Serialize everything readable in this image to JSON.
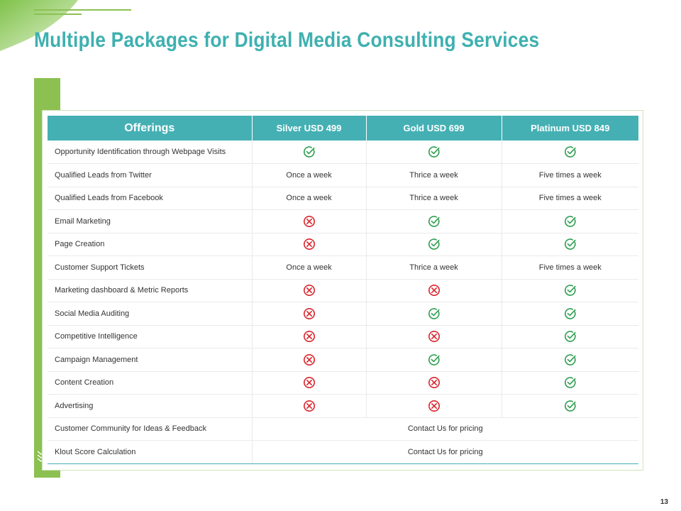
{
  "title": "Multiple Packages for Digital Media Consulting Services",
  "page_number": "13",
  "colors": {
    "header_bg": "#45b0b4",
    "accent_green": "#8cc152",
    "check": "#2e9e4f",
    "cross": "#d9252d",
    "title": "#3fb0b0"
  },
  "table": {
    "headers": [
      "Offerings",
      "Silver USD 499",
      "Gold USD 699",
      "Platinum USD 849"
    ],
    "rows": [
      {
        "feature": "Opportunity Identification through Webpage Visits",
        "cells": [
          {
            "type": "icon",
            "value": "check"
          },
          {
            "type": "icon",
            "value": "check"
          },
          {
            "type": "icon",
            "value": "check"
          }
        ]
      },
      {
        "feature": "Qualified Leads from Twitter",
        "cells": [
          {
            "type": "text",
            "value": "Once a week"
          },
          {
            "type": "text",
            "value": "Thrice a week"
          },
          {
            "type": "text",
            "value": "Five times a week"
          }
        ]
      },
      {
        "feature": "Qualified Leads from Facebook",
        "cells": [
          {
            "type": "text",
            "value": "Once a week"
          },
          {
            "type": "text",
            "value": "Thrice a week"
          },
          {
            "type": "text",
            "value": "Five times a week"
          }
        ]
      },
      {
        "feature": "Email Marketing",
        "cells": [
          {
            "type": "icon",
            "value": "cross"
          },
          {
            "type": "icon",
            "value": "check"
          },
          {
            "type": "icon",
            "value": "check"
          }
        ]
      },
      {
        "feature": "Page Creation",
        "cells": [
          {
            "type": "icon",
            "value": "cross"
          },
          {
            "type": "icon",
            "value": "check"
          },
          {
            "type": "icon",
            "value": "check"
          }
        ]
      },
      {
        "feature": "Customer Support Tickets",
        "cells": [
          {
            "type": "text",
            "value": "Once a week"
          },
          {
            "type": "text",
            "value": "Thrice a week"
          },
          {
            "type": "text",
            "value": "Five times a week"
          }
        ]
      },
      {
        "feature": "Marketing dashboard & Metric Reports",
        "cells": [
          {
            "type": "icon",
            "value": "cross"
          },
          {
            "type": "icon",
            "value": "cross"
          },
          {
            "type": "icon",
            "value": "check"
          }
        ]
      },
      {
        "feature": "Social Media Auditing",
        "cells": [
          {
            "type": "icon",
            "value": "cross"
          },
          {
            "type": "icon",
            "value": "check"
          },
          {
            "type": "icon",
            "value": "check"
          }
        ]
      },
      {
        "feature": "Competitive Intelligence",
        "cells": [
          {
            "type": "icon",
            "value": "cross"
          },
          {
            "type": "icon",
            "value": "cross"
          },
          {
            "type": "icon",
            "value": "check"
          }
        ]
      },
      {
        "feature": "Campaign Management",
        "cells": [
          {
            "type": "icon",
            "value": "cross"
          },
          {
            "type": "icon",
            "value": "check"
          },
          {
            "type": "icon",
            "value": "check"
          }
        ]
      },
      {
        "feature": "Content Creation",
        "cells": [
          {
            "type": "icon",
            "value": "cross"
          },
          {
            "type": "icon",
            "value": "cross"
          },
          {
            "type": "icon",
            "value": "check"
          }
        ]
      },
      {
        "feature": "Advertising",
        "cells": [
          {
            "type": "icon",
            "value": "cross"
          },
          {
            "type": "icon",
            "value": "cross"
          },
          {
            "type": "icon",
            "value": "check"
          }
        ]
      },
      {
        "feature": "Customer Community for Ideas & Feedback",
        "span_text": "Contact Us for pricing"
      },
      {
        "feature": "Klout Score Calculation",
        "span_text": "Contact Us for pricing"
      }
    ]
  }
}
